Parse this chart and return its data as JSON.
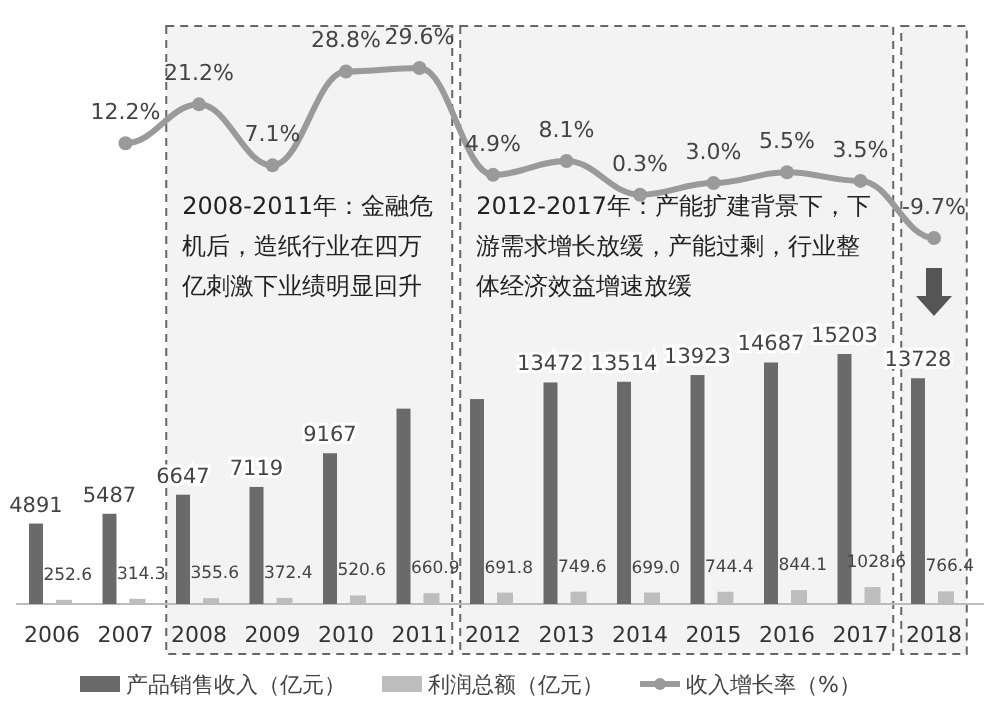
{
  "chart_data": [
    {
      "type": "line",
      "categories": [
        null,
        null,
        null,
        null,
        null,
        null,
        null,
        null,
        null,
        null,
        null,
        null
      ],
      "series": [
        {
          "name": "收入增长率（%）",
          "color": "#9a9a9a",
          "values": [
            12.2,
            21.2,
            7.1,
            28.8,
            29.6,
            4.9,
            8.1,
            0.3,
            3.0,
            5.5,
            3.5,
            -9.7
          ],
          "value_labels": [
            "12.2%",
            "21.2%",
            "7.1%",
            "28.8%",
            "29.6%",
            "4.9%",
            "8.1%",
            "0.3%",
            "3.0%",
            "5.5%",
            "3.5%",
            "-9.7%"
          ]
        }
      ],
      "marker": "circle",
      "legend": "bottom"
    },
    {
      "type": "bar",
      "categories": [
        "2006",
        "2007",
        "2008",
        "2009",
        "2010",
        "2011",
        "2012",
        "2013",
        "2014",
        "2015",
        "2016",
        "2017",
        "2018"
      ],
      "series": [
        {
          "name": "产品销售收入（亿元）",
          "color": "#6a6a6a",
          "values": [
            4891,
            5487,
            6647,
            7119,
            9167,
            11880,
            12462,
            13472,
            13514,
            13923,
            14687,
            15203,
            13728
          ],
          "value_labels": [
            "4891",
            "5487",
            "6647",
            "7119",
            "9167",
            null,
            null,
            "13472",
            "13514",
            "13923",
            "14687",
            "15203",
            "13728"
          ]
        },
        {
          "name": "利润总额（亿元）",
          "color": "#bdbdbd",
          "values": [
            252.6,
            314.3,
            355.6,
            372.4,
            520.6,
            660.9,
            691.8,
            749.6,
            699.0,
            744.4,
            844.1,
            1028.6,
            766.4
          ],
          "value_labels": [
            "252.6",
            "314.3",
            "355.6",
            "372.4",
            "520.6",
            "660.9",
            "691.8",
            "749.6",
            "699.0",
            "744.4",
            "844.1",
            "1028.6",
            "766.4"
          ]
        }
      ],
      "bands": [
        {
          "axis": "x",
          "from": "2008",
          "to": "2011",
          "color": "#f3f3f3",
          "label": "2008-2011年：金融危机后，造纸行业在四万亿刺激下业绩明显回升"
        },
        {
          "axis": "x",
          "from": "2012",
          "to": "2017",
          "color": "#f3f3f3",
          "label": "2012-2017年：产能扩建背景下，下游需求增长放缓，产能过剩，行业整体经济效益增速放缓"
        },
        {
          "axis": "x",
          "from": "2018",
          "to": "2018",
          "color": "#f3f3f3"
        }
      ],
      "legend": "bottom"
    }
  ]
}
